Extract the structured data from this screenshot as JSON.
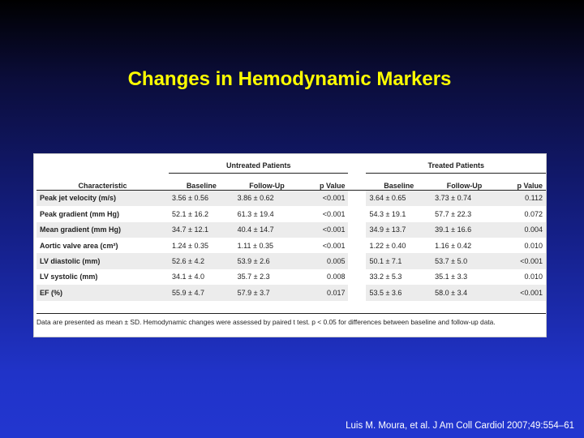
{
  "slide": {
    "title": "Changes in Hemodynamic Markers",
    "citation": "Luis M. Moura, et al. J Am Coll Cardiol 2007;49:554–61"
  },
  "table": {
    "groups": {
      "untreated": "Untreated Patients",
      "treated": "Treated Patients"
    },
    "columns": {
      "characteristic": "Characteristic",
      "baseline": "Baseline",
      "follow_up": "Follow-Up",
      "p_value": "p Value"
    },
    "rows": [
      {
        "name": "Peak jet velocity (m/s)",
        "u_base": "3.56 ± 0.56",
        "u_fu": "3.86 ± 0.62",
        "u_p": "<0.001",
        "t_base": "3.64 ± 0.65",
        "t_fu": "3.73 ± 0.74",
        "t_p": "0.112"
      },
      {
        "name": "Peak gradient (mm Hg)",
        "u_base": "52.1 ± 16.2",
        "u_fu": "61.3 ± 19.4",
        "u_p": "<0.001",
        "t_base": "54.3 ± 19.1",
        "t_fu": "57.7 ± 22.3",
        "t_p": "0.072"
      },
      {
        "name": "Mean gradient (mm Hg)",
        "u_base": "34.7 ± 12.1",
        "u_fu": "40.4 ± 14.7",
        "u_p": "<0.001",
        "t_base": "34.9 ± 13.7",
        "t_fu": "39.1 ± 16.6",
        "t_p": "0.004"
      },
      {
        "name": "Aortic valve area (cm²)",
        "u_base": "1.24 ± 0.35",
        "u_fu": "1.11 ± 0.35",
        "u_p": "<0.001",
        "t_base": "1.22 ± 0.40",
        "t_fu": "1.16 ± 0.42",
        "t_p": "0.010"
      },
      {
        "name": "LV diastolic (mm)",
        "u_base": "52.6 ± 4.2",
        "u_fu": "53.9 ± 2.6",
        "u_p": "0.005",
        "t_base": "50.1 ± 7.1",
        "t_fu": "53.7 ± 5.0",
        "t_p": "<0.001"
      },
      {
        "name": "LV systolic (mm)",
        "u_base": "34.1 ± 4.0",
        "u_fu": "35.7 ± 2.3",
        "u_p": "0.008",
        "t_base": "33.2 ± 5.3",
        "t_fu": "35.1 ± 3.3",
        "t_p": "0.010"
      },
      {
        "name": "EF (%)",
        "u_base": "55.9 ± 4.7",
        "u_fu": "57.9 ± 3.7",
        "u_p": "0.017",
        "t_base": "53.5 ± 3.6",
        "t_fu": "58.0 ± 3.4",
        "t_p": "<0.001"
      }
    ],
    "footnote": "Data are presented as mean ± SD. Hemodynamic changes were assessed by paired t test. p < 0.05 for differences between baseline and follow-up data."
  }
}
